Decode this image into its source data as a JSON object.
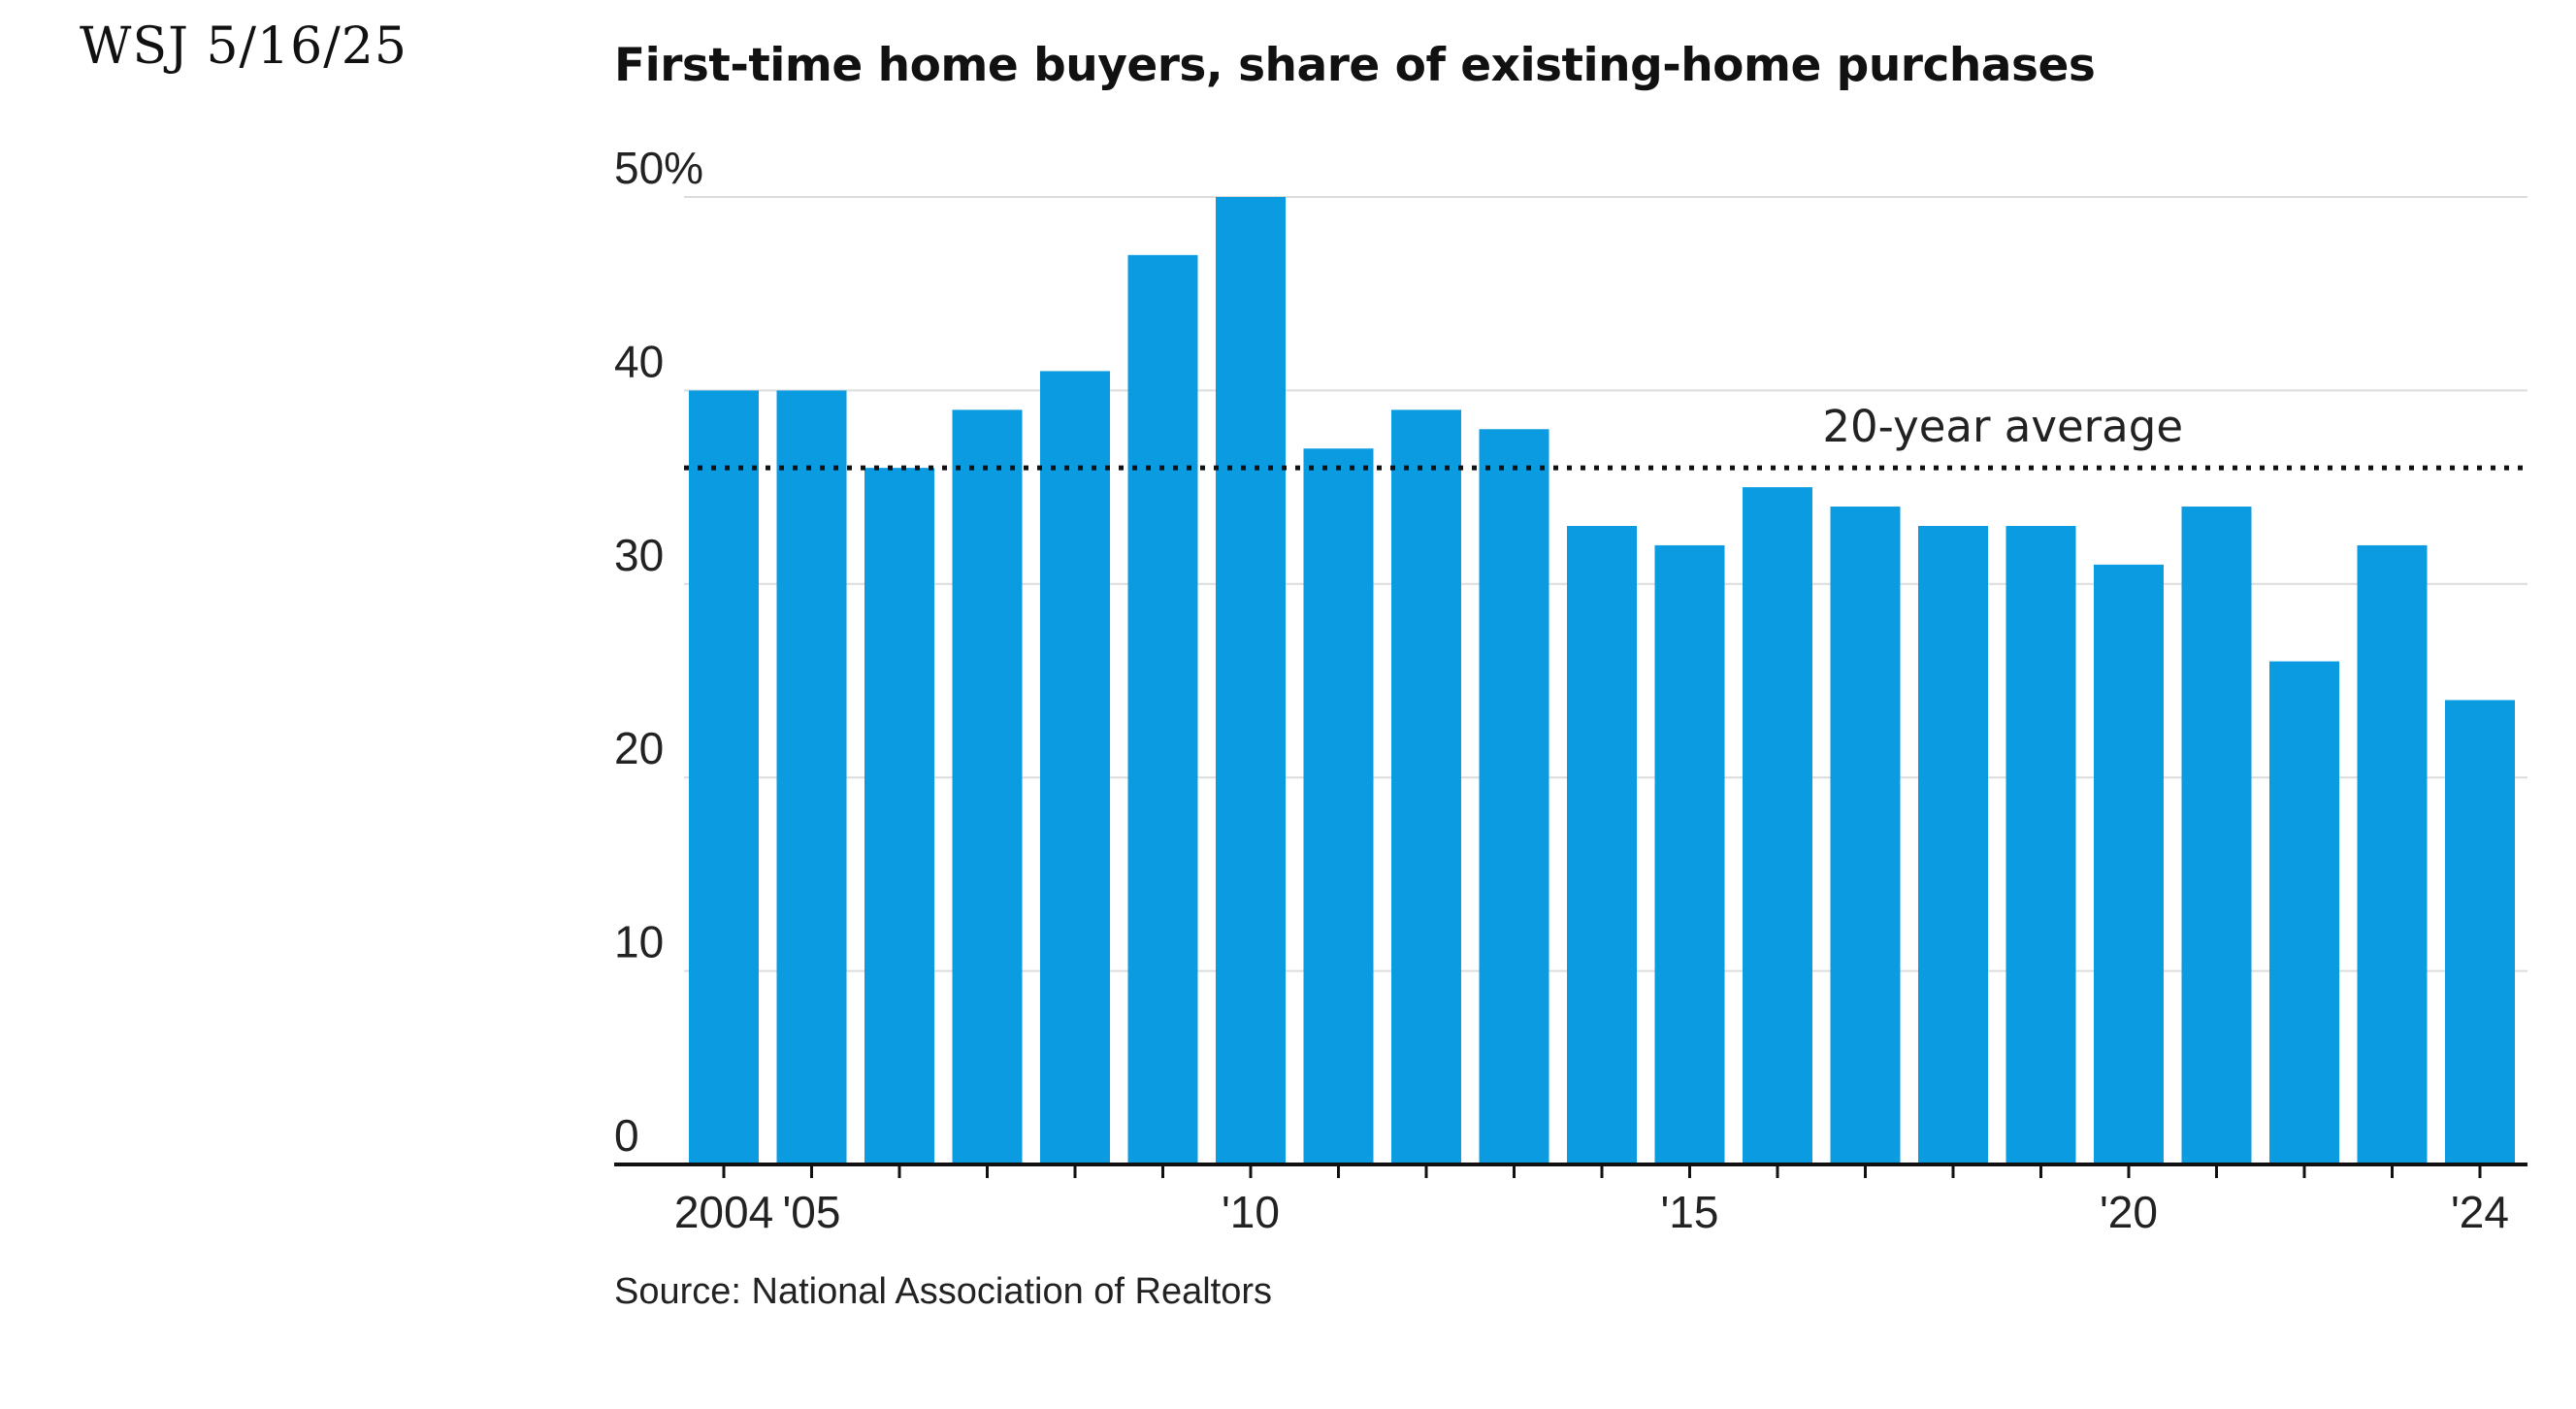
{
  "annotation": "WSJ  5/16/25",
  "chart_data": {
    "type": "bar",
    "title": "First-time home buyers, share of existing-home purchases",
    "source": "Source: National Association of Realtors",
    "categories": [
      "2004",
      "2005",
      "2006",
      "2007",
      "2008",
      "2009",
      "2010",
      "2011",
      "2012",
      "2013",
      "2014",
      "2015",
      "2016",
      "2017",
      "2018",
      "2019",
      "2020",
      "2021",
      "2022",
      "2023",
      "2024"
    ],
    "x_tick_labels": [
      "2004",
      "'05",
      "",
      "",
      "",
      "",
      "'10",
      "",
      "",
      "",
      "",
      "'15",
      "",
      "",
      "",
      "",
      "'20",
      "",
      "",
      "",
      "'24"
    ],
    "values": [
      40,
      40,
      36,
      39,
      41,
      47,
      50,
      37,
      39,
      38,
      33,
      32,
      35,
      34,
      33,
      33,
      31,
      34,
      26,
      32,
      24
    ],
    "y_tick_labels": [
      "0",
      "10",
      "20",
      "30",
      "40",
      "50%"
    ],
    "y_ticks": [
      0,
      10,
      20,
      30,
      40,
      50
    ],
    "ylim": [
      0,
      50
    ],
    "reference_line": {
      "label": "20-year average",
      "value": 36
    },
    "bar_color": "#0b9be0",
    "grid": true,
    "legend": "none"
  }
}
